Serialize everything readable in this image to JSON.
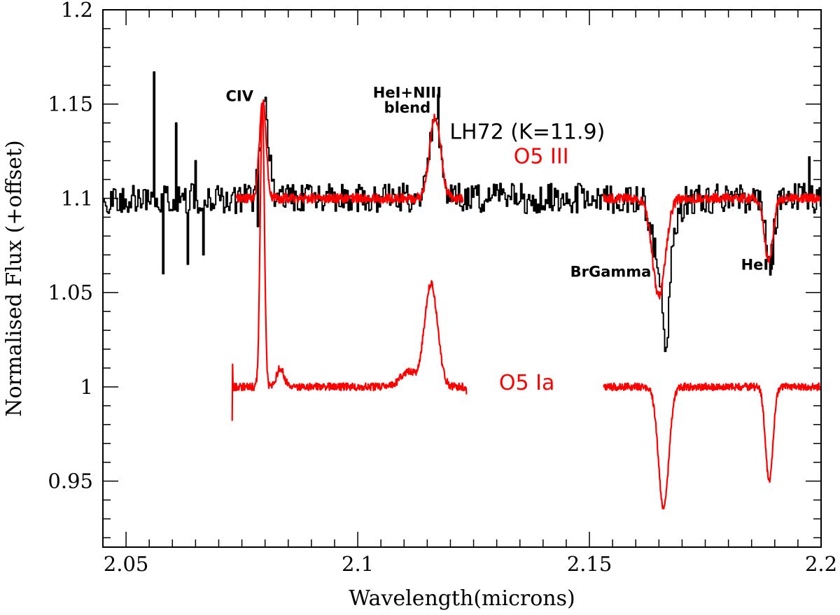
{
  "chart_data": {
    "type": "line",
    "title": "",
    "xlabel": "Wavelength(microns)",
    "ylabel": "Normalised Flux (+offset)",
    "xlim": [
      2.045,
      2.2
    ],
    "ylim": [
      0.915,
      1.2
    ],
    "xticks": [
      2.05,
      2.1,
      2.15,
      2.2
    ],
    "xtick_labels": [
      "2.05",
      "2.1",
      "2.15",
      "2.2"
    ],
    "yticks": [
      0.95,
      1.0,
      1.05,
      1.1,
      1.15,
      1.2
    ],
    "ytick_labels": [
      "0.95",
      "1",
      "1.05",
      "1.1",
      "1.15",
      "1.2"
    ],
    "grid": false,
    "annotations": [
      {
        "text": "CIV",
        "x": 2.0745,
        "y": 1.1515,
        "anchor": "middle"
      },
      {
        "text": "HeI+NIII",
        "x": 2.1107,
        "y": 1.1535,
        "anchor": "middle"
      },
      {
        "text": "blend",
        "x": 2.1107,
        "y": 1.1455,
        "anchor": "middle"
      },
      {
        "text": "BrGamma",
        "x": 2.1546,
        "y": 1.0585,
        "anchor": "middle"
      },
      {
        "text": "HeII",
        "x": 2.1863,
        "y": 1.0622,
        "anchor": "middle"
      }
    ],
    "series_labels": [
      {
        "text": "LH72 (K=11.9)",
        "x": 2.1366,
        "y": 1.1315,
        "color": "#000000"
      },
      {
        "text": "O5 III",
        "x": 2.1396,
        "y": 1.1185,
        "color": "#ff0000"
      },
      {
        "text": "O5 Ia",
        "x": 2.1365,
        "y": 0.9985,
        "color": "#ff0000"
      }
    ],
    "series": [
      {
        "name": "LH72 (K=11.9)",
        "color": "#000000",
        "style": "steps",
        "baseline": 1.1,
        "x_range": [
          2.045,
          2.2
        ],
        "noise": 0.008,
        "features": [
          {
            "center": 2.0797,
            "depth": 0.052,
            "width": 0.0009
          },
          {
            "center": 2.1165,
            "depth": 0.045,
            "width": 0.0011
          },
          {
            "center": 2.1659,
            "depth": -0.05,
            "width": 0.0018
          },
          {
            "center": 2.1665,
            "depth": -0.03,
            "width": 0.0004
          },
          {
            "center": 2.1888,
            "depth": -0.033,
            "width": 0.0009
          }
        ],
        "points": [
          [
            2.0552,
            1.097
          ],
          [
            2.0558,
            1.08
          ],
          [
            2.056,
            1.167
          ],
          [
            2.0565,
            1.1
          ],
          [
            2.0578,
            1.06
          ],
          [
            2.0608,
            1.14
          ],
          [
            2.0632,
            1.065
          ],
          [
            2.0648,
            1.12
          ],
          [
            2.0665,
            1.07
          ],
          [
            2.0782,
            1.085
          ],
          [
            2.1172,
            1.155
          ],
          [
            2.1666,
            1.021
          ],
          [
            2.1895,
            1.065
          ],
          [
            2.1972,
            1.122
          ]
        ]
      },
      {
        "name": "O5 III",
        "color": "#ff0000",
        "style": "line",
        "baseline": 1.1,
        "segments": [
          [
            2.0737,
            2.1228
          ],
          [
            2.153,
            2.2
          ]
        ],
        "noise": 0.0025,
        "features": [
          {
            "center": 2.0795,
            "depth": 0.052,
            "width": 0.0007
          },
          {
            "center": 2.1167,
            "depth": 0.043,
            "width": 0.0012
          },
          {
            "center": 2.165,
            "depth": -0.052,
            "width": 0.0014
          },
          {
            "center": 2.1887,
            "depth": -0.034,
            "width": 0.0009
          }
        ],
        "points": []
      },
      {
        "name": "O5 Ia",
        "color": "#ff0000",
        "style": "line",
        "baseline": 1.0,
        "segments": [
          [
            2.0729,
            2.1235
          ],
          [
            2.153,
            2.2
          ]
        ],
        "noise": 0.002,
        "features": [
          {
            "center": 2.0794,
            "depth": 0.15,
            "width": 0.00045
          },
          {
            "center": 2.0833,
            "depth": 0.01,
            "width": 0.0008
          },
          {
            "center": 2.1158,
            "depth": 0.055,
            "width": 0.0014
          },
          {
            "center": 2.1108,
            "depth": 0.008,
            "width": 0.0016
          },
          {
            "center": 2.166,
            "depth": -0.065,
            "width": 0.0011
          },
          {
            "center": 2.1888,
            "depth": -0.05,
            "width": 0.0008
          }
        ],
        "points": [
          [
            2.0729,
            0.982
          ],
          [
            2.073,
            1.012
          ],
          [
            2.1235,
            0.996
          ]
        ]
      }
    ]
  }
}
